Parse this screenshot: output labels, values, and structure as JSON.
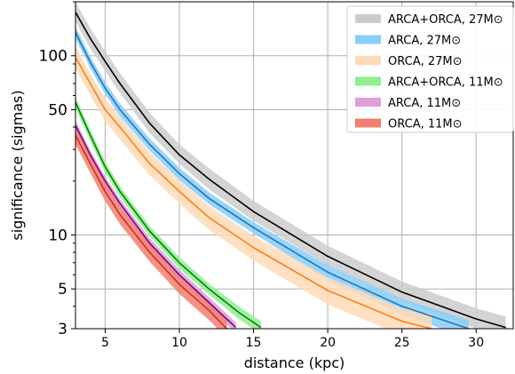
{
  "chart_data": {
    "type": "line",
    "xlabel": "distance (kpc)",
    "ylabel": "significance (sigmas)",
    "xlim": [
      3,
      32.5
    ],
    "ylim": [
      3,
      200
    ],
    "yscale": "log",
    "grid": true,
    "legend_position": "top-right",
    "x_ticks": [
      5,
      10,
      15,
      20,
      25,
      30
    ],
    "x_tick_labels": [
      "5",
      "10",
      "15",
      "20",
      "25",
      "30"
    ],
    "y_ticks": [
      3,
      5,
      10,
      50,
      100
    ],
    "y_tick_labels": [
      "3",
      "5",
      "10",
      "50",
      "100"
    ],
    "series": [
      {
        "name": "ARCA+ORCA, 27M⊙",
        "line_color": "#000000",
        "band_color": "#cccccc",
        "x": [
          3,
          4,
          5,
          6,
          8,
          10,
          12,
          15,
          20,
          25,
          30,
          32
        ],
        "y": [
          175,
          125,
          93,
          70,
          42,
          28,
          20.5,
          13.5,
          7.6,
          4.8,
          3.4,
          3.05
        ],
        "lower": [
          155,
          110,
          82,
          62,
          37,
          25,
          18,
          12,
          6.8,
          4.3,
          3.0,
          2.7
        ],
        "upper": [
          200,
          142,
          106,
          80,
          48,
          32,
          23.5,
          15.5,
          8.7,
          5.5,
          3.9,
          3.5
        ]
      },
      {
        "name": "ARCA, 27M⊙",
        "line_color": "#1f77b4",
        "band_color": "#87cefa",
        "x": [
          3,
          4,
          5,
          6,
          8,
          10,
          12,
          15,
          20,
          25,
          29.5
        ],
        "y": [
          135,
          92,
          66,
          50,
          32,
          22,
          16,
          11,
          6.2,
          4.0,
          3.0
        ],
        "lower": [
          125,
          85,
          61,
          46,
          29.5,
          20.3,
          14.8,
          10.2,
          5.6,
          3.6,
          2.65
        ],
        "upper": [
          146,
          99,
          71,
          54,
          34.5,
          23.7,
          17.3,
          11.8,
          6.8,
          4.4,
          3.35
        ]
      },
      {
        "name": "ORCA, 27M⊙",
        "line_color": "#ff7f0e",
        "band_color": "#ffdab9",
        "x": [
          3,
          4,
          5,
          6,
          8,
          10,
          12,
          15,
          20,
          25,
          27
        ],
        "y": [
          98,
          70,
          50,
          40,
          25,
          17.5,
          12.5,
          8.5,
          4.9,
          3.3,
          3.0
        ],
        "lower": [
          85,
          60,
          43,
          34,
          21.5,
          15,
          10.7,
          7.2,
          4.1,
          2.75,
          2.5
        ],
        "upper": [
          113,
          80,
          58,
          46,
          29,
          20.3,
          14.5,
          9.9,
          5.8,
          3.9,
          3.6
        ]
      },
      {
        "name": "ARCA+ORCA, 11M⊙",
        "line_color": "#008000",
        "band_color": "#90ee90",
        "x": [
          3,
          4,
          5,
          6,
          8,
          10,
          12,
          14,
          15.5
        ],
        "y": [
          55,
          36,
          24,
          17.5,
          10.5,
          7.0,
          5.0,
          3.7,
          3.05
        ],
        "lower": [
          51,
          33.5,
          22.3,
          16.3,
          9.8,
          6.5,
          4.65,
          3.4,
          2.8
        ],
        "upper": [
          59,
          38.5,
          25.7,
          18.7,
          11.2,
          7.5,
          5.35,
          4.0,
          3.3
        ]
      },
      {
        "name": "ARCA, 11M⊙",
        "line_color": "#800080",
        "band_color": "#dda0dd",
        "x": [
          3,
          4,
          5,
          6,
          8,
          10,
          12,
          13.8
        ],
        "y": [
          41,
          28,
          20,
          15,
          9,
          6.0,
          4.2,
          3.05
        ],
        "lower": [
          38.5,
          26.3,
          18.8,
          14.1,
          8.4,
          5.6,
          3.9,
          2.85
        ],
        "upper": [
          43.5,
          29.7,
          21.2,
          15.9,
          9.6,
          6.4,
          4.5,
          3.25
        ]
      },
      {
        "name": "ORCA, 11M⊙",
        "line_color": "#d62728",
        "band_color": "#f08070",
        "x": [
          3,
          4,
          5,
          6,
          8,
          10,
          12,
          13.2
        ],
        "y": [
          36,
          25,
          17.5,
          13,
          8,
          5.3,
          3.8,
          3.0
        ],
        "lower": [
          32,
          22.2,
          15.5,
          11.5,
          7.1,
          4.7,
          3.35,
          2.65
        ],
        "upper": [
          40,
          27.8,
          19.5,
          14.5,
          8.9,
          5.9,
          4.25,
          3.35
        ]
      }
    ]
  }
}
